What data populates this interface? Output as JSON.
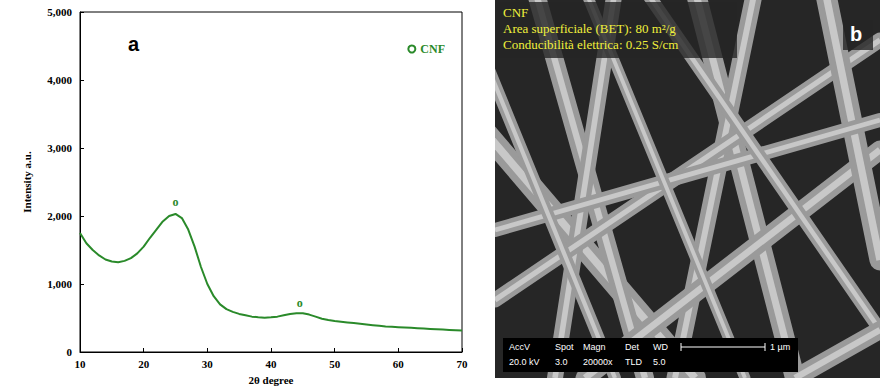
{
  "chart_data": {
    "type": "line",
    "panel_label": "a",
    "x_label": "2θ degree",
    "y_label": "Intensity a.u.",
    "xlim": [
      10,
      70
    ],
    "xticks": [
      10,
      20,
      30,
      40,
      50,
      60,
      70
    ],
    "ylim": [
      0,
      5000
    ],
    "yticks": [
      0,
      1000,
      2000,
      3000,
      4000,
      5000
    ],
    "grid": false,
    "legend": "upper right",
    "x": [
      10,
      11,
      12,
      13,
      14,
      15,
      16,
      17,
      18,
      19,
      20,
      21,
      22,
      23,
      24,
      25,
      26,
      27,
      28,
      29,
      30,
      31,
      32,
      33,
      34,
      35,
      36,
      37,
      38,
      39,
      40,
      41,
      42,
      43,
      44,
      45,
      46,
      47,
      48,
      49,
      50,
      51,
      52,
      53,
      54,
      55,
      56,
      57,
      58,
      59,
      60,
      61,
      62,
      63,
      64,
      65,
      66,
      67,
      68,
      69,
      70
    ],
    "series": [
      {
        "name": "CNF",
        "color": "#2a8a2a",
        "marker": "none",
        "line_style": "solid",
        "values": [
          1750,
          1600,
          1500,
          1420,
          1360,
          1330,
          1320,
          1340,
          1380,
          1450,
          1550,
          1680,
          1800,
          1920,
          2000,
          2030,
          1970,
          1800,
          1550,
          1250,
          1000,
          820,
          700,
          630,
          590,
          560,
          540,
          520,
          510,
          505,
          510,
          520,
          540,
          560,
          570,
          570,
          550,
          520,
          490,
          470,
          455,
          445,
          435,
          425,
          415,
          405,
          395,
          385,
          375,
          370,
          365,
          360,
          355,
          350,
          345,
          340,
          335,
          330,
          325,
          320,
          315
        ]
      }
    ],
    "annotations": [
      {
        "text": "o",
        "x": 25,
        "y": 2200
      },
      {
        "text": "o",
        "x": 44.5,
        "y": 720
      }
    ]
  },
  "sem_image": {
    "panel_label": "b",
    "title": "CNF",
    "lines": [
      "Area superficiale (BET): 80 m²/g",
      "Conducibilità elettrica: 0.25 S/cm"
    ],
    "databar": {
      "headers": [
        "AccV",
        "Spot",
        "Magn",
        "Det",
        "WD"
      ],
      "values": [
        "20.0 kV",
        "3.0",
        "20000x",
        "TLD",
        "5.0"
      ],
      "scale_bar": "1 µm"
    }
  }
}
